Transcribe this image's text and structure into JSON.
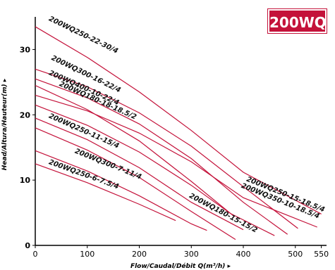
{
  "badge": "200WQ",
  "chart_data": {
    "type": "line",
    "title": "",
    "xlabel": "Flow/Caudal/Débit Q(m³/h) ▸",
    "ylabel": "Head/Altura/Hauteur(m) ▸",
    "xlim": [
      0,
      560
    ],
    "ylim": [
      0,
      35
    ],
    "x_ticks": [
      0,
      100,
      200,
      300,
      400,
      500,
      550
    ],
    "y_ticks": [
      0,
      10,
      20,
      30
    ],
    "grid": false,
    "series_color": "#c4123a",
    "series": [
      {
        "name": "200WQ250-22-30/4",
        "points": [
          [
            0,
            33.5
          ],
          [
            100,
            28.8
          ],
          [
            200,
            23.5
          ],
          [
            300,
            17.6
          ],
          [
            400,
            11.2
          ],
          [
            550,
            4.8
          ]
        ]
      },
      {
        "name": "200WQ300-16-22/4",
        "points": [
          [
            0,
            27.0
          ],
          [
            100,
            24.3
          ],
          [
            200,
            20.3
          ],
          [
            300,
            15.2
          ],
          [
            400,
            9.0
          ],
          [
            505,
            2.6
          ]
        ]
      },
      {
        "name": "200WQ400-10-22/4",
        "points": [
          [
            0,
            25.5
          ],
          [
            100,
            22.6
          ],
          [
            200,
            18.6
          ],
          [
            300,
            13.3
          ],
          [
            400,
            6.6
          ],
          [
            485,
            1.7
          ]
        ]
      },
      {
        "name": "200WQ180-18-18.5/2",
        "points": [
          [
            0,
            24.5
          ],
          [
            100,
            20.8
          ],
          [
            200,
            16.0
          ],
          [
            300,
            9.8
          ],
          [
            380,
            4.6
          ]
        ]
      },
      {
        "name": "200WQ250-15-18.5/4",
        "points": [
          [
            0,
            23.0
          ],
          [
            100,
            20.6
          ],
          [
            200,
            17.2
          ],
          [
            300,
            12.8
          ],
          [
            400,
            7.3
          ],
          [
            542,
            2.8
          ]
        ]
      },
      {
        "name": "200WQ350-10-18.5/4",
        "points": [
          [
            0,
            21.5
          ],
          [
            100,
            18.4
          ],
          [
            200,
            14.3
          ],
          [
            300,
            9.2
          ],
          [
            375,
            4.9
          ],
          [
            460,
            1.5
          ]
        ]
      },
      {
        "name": "200WQ180-15-15/2",
        "points": [
          [
            0,
            19.5
          ],
          [
            100,
            16.2
          ],
          [
            200,
            11.9
          ],
          [
            300,
            6.6
          ],
          [
            400,
            2.4
          ]
        ]
      },
      {
        "name": "200WQ250-11-15/4",
        "points": [
          [
            0,
            18.0
          ],
          [
            100,
            14.6
          ],
          [
            200,
            10.4
          ],
          [
            300,
            5.2
          ],
          [
            385,
            0.9
          ]
        ]
      },
      {
        "name": "200WQ300-7-11/4",
        "points": [
          [
            0,
            14.5
          ],
          [
            100,
            11.4
          ],
          [
            200,
            7.6
          ],
          [
            300,
            3.3
          ],
          [
            330,
            2.3
          ]
        ]
      },
      {
        "name": "200WQ250-6-7.5/4",
        "points": [
          [
            0,
            12.5
          ],
          [
            100,
            9.6
          ],
          [
            200,
            6.3
          ],
          [
            270,
            3.8
          ]
        ]
      }
    ],
    "curve_labels": [
      {
        "text": "200WQ250-22-30/4",
        "x": 25,
        "y": 34.5,
        "angle": 26
      },
      {
        "text": "200WQ300-16-22/4",
        "x": 30,
        "y": 28.5,
        "angle": 26
      },
      {
        "text": "200WQ400-10-22/4",
        "x": 25,
        "y": 26.2,
        "angle": 24
      },
      {
        "text": "200WQ180-18-18.5/2",
        "x": 45,
        "y": 24.5,
        "angle": 24
      },
      {
        "text": "200WQ250-11-15/4",
        "x": 25,
        "y": 19.6,
        "angle": 24
      },
      {
        "text": "200WQ300-7-11/4",
        "x": 75,
        "y": 14.2,
        "angle": 22
      },
      {
        "text": "200WQ250-6-7.5/4",
        "x": 25,
        "y": 12.5,
        "angle": 20
      },
      {
        "text": "200WQ250-15-18.5/4",
        "x": 405,
        "y": 9.9,
        "angle": 22
      },
      {
        "text": "200WQ350-10-18.5/4",
        "x": 395,
        "y": 8.9,
        "angle": 22
      },
      {
        "text": "200WQ180-15-15/2",
        "x": 295,
        "y": 7.4,
        "angle": 28
      }
    ]
  }
}
